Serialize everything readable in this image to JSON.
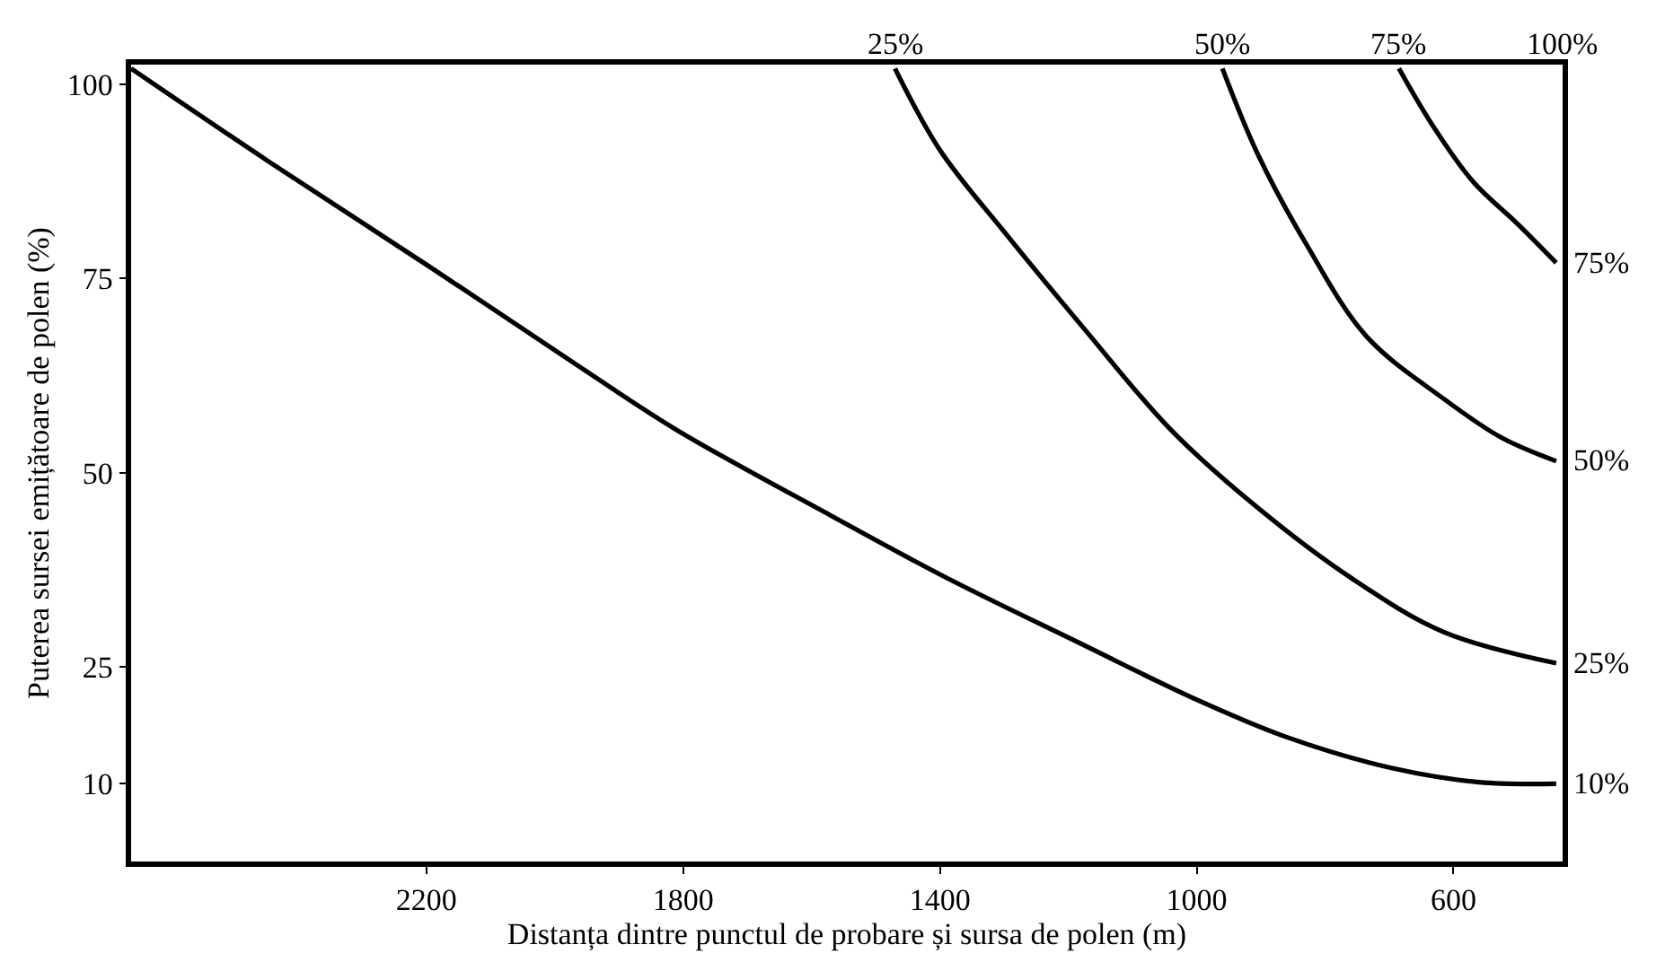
{
  "chart_data": {
    "type": "line",
    "xlabel": "Distanța dintre punctul de probare și sursa de polen (m)",
    "ylabel": "Puterea sursei emițătoare de polen (%)",
    "xlim": [
      2660,
      430
    ],
    "xticks": [
      2200,
      1800,
      1400,
      1000,
      600
    ],
    "ylim": [
      0,
      102.5
    ],
    "yticks": [
      10,
      25,
      50,
      75,
      100
    ],
    "marker": "none",
    "line_style": "solid",
    "series": [
      {
        "color": "#000000",
        "x": [
          2660,
          2445,
          2195,
          1950,
          1810,
          1570,
          1390,
          1180,
          1005,
          860,
          695,
          560,
          440
        ],
        "values": [
          102,
          90,
          76.5,
          63,
          55.5,
          44.5,
          36.5,
          28,
          21,
          16,
          12,
          10.2,
          10
        ]
      },
      {
        "color": "#000000",
        "x": [
          1470,
          1400,
          1295,
          1175,
          1040,
          905,
          760,
          615,
          440
        ],
        "values": [
          102,
          91.5,
          80.5,
          68.5,
          55.5,
          45.5,
          36.5,
          29.5,
          25.5
        ]
      },
      {
        "color": "#000000",
        "x": [
          960,
          905,
          830,
          735,
          615,
          525,
          440
        ],
        "values": [
          102,
          91,
          79.5,
          67.5,
          59.5,
          54.5,
          51.5
        ]
      },
      {
        "color": "#000000",
        "x": [
          685,
          635,
          570,
          500,
          440
        ],
        "values": [
          102,
          95,
          87.5,
          82,
          77
        ]
      }
    ],
    "annotations": [
      {
        "text": "25%",
        "x": 1470,
        "y": 102.5
      },
      {
        "text": "50%",
        "x": 960,
        "y": 102.5
      },
      {
        "text": "75%",
        "x": 685,
        "y": 102.5
      },
      "100%",
      {
        "text": "75%",
        "x": 430,
        "y": 77
      },
      {
        "text": "50%",
        "x": 430,
        "y": 51.5
      },
      {
        "text": "25%",
        "x": 430,
        "y": 25.5
      },
      {
        "text": "10%",
        "x": 430,
        "y": 10
      }
    ]
  }
}
